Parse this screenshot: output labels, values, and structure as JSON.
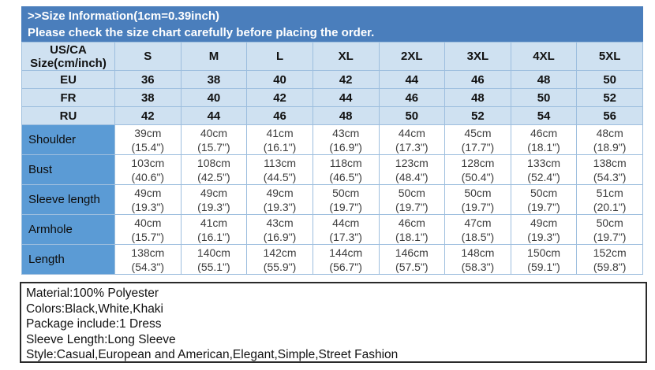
{
  "banner": {
    "line1": ">>Size Information(1cm=0.39inch)",
    "line2": "Please check the size chart carefully before placing the order."
  },
  "colors": {
    "banner_bg": "#4a7ebc",
    "banner_text": "#ffffff",
    "header_bg": "#cfe1f1",
    "measure_label_bg": "#5b9bd5",
    "cell_bg": "#ffffff",
    "grid_border": "#9dbede",
    "details_border": "#2a2a2a"
  },
  "table": {
    "corner_line1": "US/CA",
    "corner_line2": "Size(cm/inch)",
    "size_headers": [
      "S",
      "M",
      "L",
      "XL",
      "2XL",
      "3XL",
      "4XL",
      "5XL"
    ],
    "region_rows": [
      {
        "label": "EU",
        "values": [
          "36",
          "38",
          "40",
          "42",
          "44",
          "46",
          "48",
          "50"
        ]
      },
      {
        "label": "FR",
        "values": [
          "38",
          "40",
          "42",
          "44",
          "46",
          "48",
          "50",
          "52"
        ]
      },
      {
        "label": "RU",
        "values": [
          "42",
          "44",
          "46",
          "48",
          "50",
          "52",
          "54",
          "56"
        ]
      }
    ],
    "measure_rows": [
      {
        "label": "Shoulder",
        "values": [
          {
            "cm": "39cm",
            "inch": "(15.4\")"
          },
          {
            "cm": "40cm",
            "inch": "(15.7\")"
          },
          {
            "cm": "41cm",
            "inch": "(16.1\")"
          },
          {
            "cm": "43cm",
            "inch": "(16.9\")"
          },
          {
            "cm": "44cm",
            "inch": "(17.3\")"
          },
          {
            "cm": "45cm",
            "inch": "(17.7\")"
          },
          {
            "cm": "46cm",
            "inch": "(18.1\")"
          },
          {
            "cm": "48cm",
            "inch": "(18.9\")"
          }
        ]
      },
      {
        "label": "Bust",
        "values": [
          {
            "cm": "103cm",
            "inch": "(40.6\")"
          },
          {
            "cm": "108cm",
            "inch": "(42.5\")"
          },
          {
            "cm": "113cm",
            "inch": "(44.5\")"
          },
          {
            "cm": "118cm",
            "inch": "(46.5\")"
          },
          {
            "cm": "123cm",
            "inch": "(48.4\")"
          },
          {
            "cm": "128cm",
            "inch": "(50.4\")"
          },
          {
            "cm": "133cm",
            "inch": "(52.4\")"
          },
          {
            "cm": "138cm",
            "inch": "(54.3\")"
          }
        ]
      },
      {
        "label": "Sleeve length",
        "values": [
          {
            "cm": "49cm",
            "inch": "(19.3\")"
          },
          {
            "cm": "49cm",
            "inch": "(19.3\")"
          },
          {
            "cm": "49cm",
            "inch": "(19.3\")"
          },
          {
            "cm": "50cm",
            "inch": "(19.7\")"
          },
          {
            "cm": "50cm",
            "inch": "(19.7\")"
          },
          {
            "cm": "50cm",
            "inch": "(19.7\")"
          },
          {
            "cm": "50cm",
            "inch": "(19.7\")"
          },
          {
            "cm": "51cm",
            "inch": "(20.1\")"
          }
        ]
      },
      {
        "label": "Armhole",
        "values": [
          {
            "cm": "40cm",
            "inch": "(15.7\")"
          },
          {
            "cm": "41cm",
            "inch": "(16.1\")"
          },
          {
            "cm": "43cm",
            "inch": "(16.9\")"
          },
          {
            "cm": "44cm",
            "inch": "(17.3\")"
          },
          {
            "cm": "46cm",
            "inch": "(18.1\")"
          },
          {
            "cm": "47cm",
            "inch": "(18.5\")"
          },
          {
            "cm": "49cm",
            "inch": "(19.3\")"
          },
          {
            "cm": "50cm",
            "inch": "(19.7\")"
          }
        ]
      },
      {
        "label": "Length",
        "values": [
          {
            "cm": "138cm",
            "inch": "(54.3\")"
          },
          {
            "cm": "140cm",
            "inch": "(55.1\")"
          },
          {
            "cm": "142cm",
            "inch": "(55.9\")"
          },
          {
            "cm": "144cm",
            "inch": "(56.7\")"
          },
          {
            "cm": "146cm",
            "inch": "(57.5\")"
          },
          {
            "cm": "148cm",
            "inch": "(58.3\")"
          },
          {
            "cm": "150cm",
            "inch": "(59.1\")"
          },
          {
            "cm": "152cm",
            "inch": "(59.8\")"
          }
        ]
      }
    ]
  },
  "details": {
    "lines": [
      "Material:100% Polyester",
      "Colors:Black,White,Khaki",
      "Package include:1 Dress",
      "Sleeve Length:Long Sleeve",
      "Style:Casual,European and American,Elegant,Simple,Street Fashion"
    ]
  }
}
